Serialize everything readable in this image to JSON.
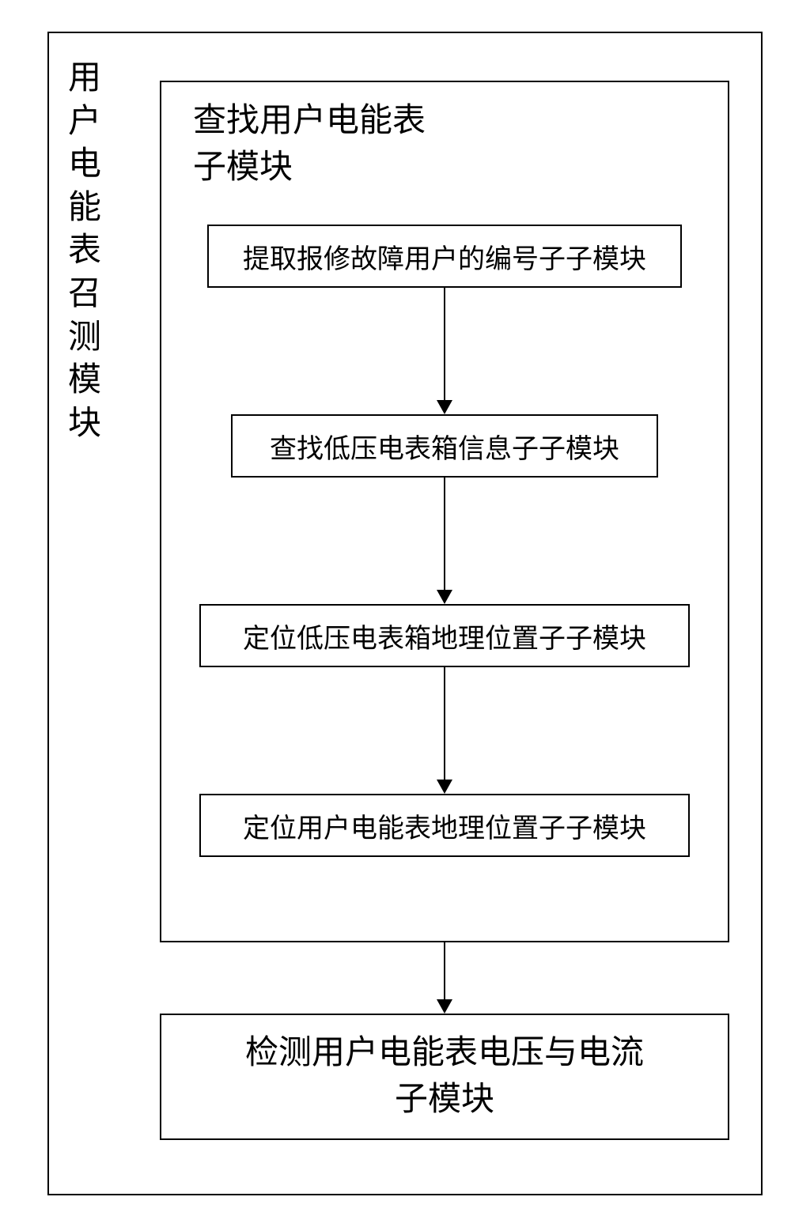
{
  "diagram": {
    "type": "flowchart",
    "background_color": "#ffffff",
    "border_color": "#000000",
    "text_color": "#000000",
    "font_family": "SimSun",
    "outer_title": "用户电能表召测模块",
    "outer_title_fontsize": 42,
    "inner_title": "查找用户电能表\n子模块",
    "inner_title_fontsize": 42,
    "steps": [
      {
        "label": "提取报修故障用户的编号子子模块"
      },
      {
        "label": "查找低压电表箱信息子子模块"
      },
      {
        "label": "定位低压电表箱地理位置子子模块"
      },
      {
        "label": "定位用户电能表地理位置子子模块"
      }
    ],
    "step_fontsize": 34,
    "bottom_box": "检测用户电能表电压与电流\n子模块",
    "bottom_box_fontsize": 42,
    "arrow_color": "#000000",
    "line_width": 2
  }
}
